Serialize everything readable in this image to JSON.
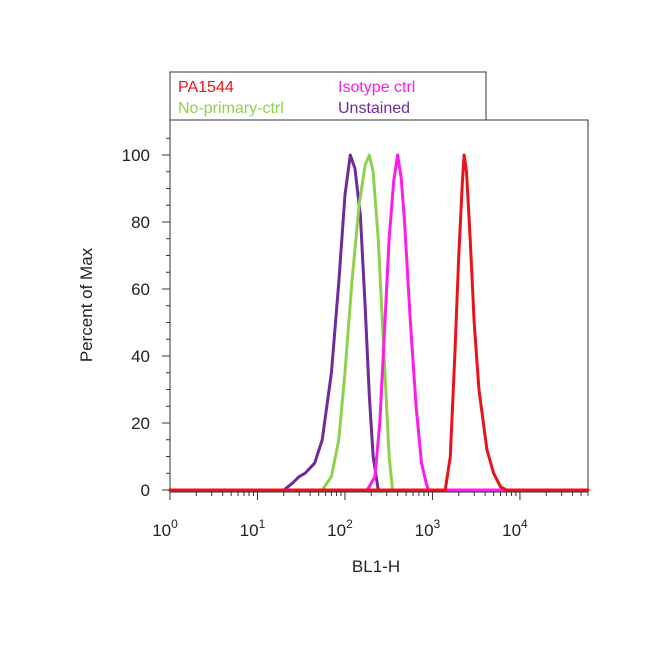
{
  "chart_data": {
    "type": "line",
    "xlabel": "BL1-H",
    "ylabel": "Percent of Max",
    "xscale": "log",
    "xlim": [
      1,
      60000
    ],
    "ylim": [
      0,
      110
    ],
    "x_ticks": [
      {
        "value": 1,
        "base": "10",
        "exp": "0"
      },
      {
        "value": 10,
        "base": "10",
        "exp": "1"
      },
      {
        "value": 100,
        "base": "10",
        "exp": "2"
      },
      {
        "value": 1000,
        "base": "10",
        "exp": "3"
      },
      {
        "value": 10000,
        "base": "10",
        "exp": "4"
      }
    ],
    "y_ticks": [
      0,
      20,
      40,
      60,
      80,
      100
    ],
    "grid": false,
    "legend_position": "top",
    "series": [
      {
        "name": "PA1544",
        "color": "#e8141c",
        "x": [
          1,
          1400,
          1600,
          1800,
          2000,
          2200,
          2300,
          2450,
          2700,
          3000,
          3400,
          4200,
          5000,
          6000,
          7000,
          60000
        ],
        "y": [
          0,
          0,
          10,
          40,
          70,
          92,
          100,
          95,
          75,
          50,
          30,
          12,
          5,
          1,
          0,
          0
        ]
      },
      {
        "name": "Isotype ctrl",
        "color": "#ff1ce8",
        "x": [
          1,
          180,
          220,
          250,
          280,
          320,
          360,
          400,
          440,
          480,
          560,
          650,
          750,
          850,
          900,
          60000
        ],
        "y": [
          0,
          0,
          4,
          20,
          45,
          75,
          92,
          100,
          93,
          80,
          50,
          25,
          8,
          2,
          0,
          0
        ]
      },
      {
        "name": "No-primary-ctrl",
        "color": "#8fd14f",
        "x": [
          1,
          55,
          70,
          85,
          100,
          120,
          145,
          170,
          190,
          210,
          240,
          280,
          320,
          350,
          60000
        ],
        "y": [
          0,
          0,
          4,
          15,
          35,
          62,
          85,
          97,
          100,
          95,
          75,
          40,
          10,
          0,
          0
        ]
      },
      {
        "name": "Unstained",
        "color": "#6e2c9a",
        "x": [
          1,
          20,
          25,
          30,
          35,
          45,
          55,
          70,
          85,
          100,
          115,
          130,
          150,
          170,
          190,
          210,
          240,
          60000
        ],
        "y": [
          0,
          0,
          2,
          4,
          5,
          8,
          15,
          35,
          62,
          88,
          100,
          96,
          82,
          55,
          28,
          10,
          0,
          0
        ]
      }
    ]
  }
}
